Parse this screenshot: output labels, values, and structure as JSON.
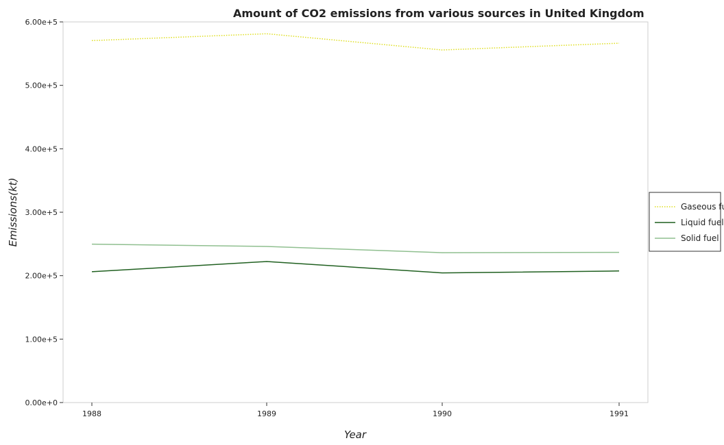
{
  "chart_data": {
    "type": "line",
    "title": "Amount of CO2 emissions from various sources in United Kingdom",
    "xlabel": "Year",
    "ylabel": "Emissions(kt)",
    "categories": [
      "1988",
      "1989",
      "1990",
      "1991"
    ],
    "ylim": [
      0,
      600000
    ],
    "y_ticks": [
      0,
      100000,
      200000,
      300000,
      400000,
      500000,
      600000
    ],
    "y_tick_labels": [
      "0.00e+0",
      "1.00e+5",
      "2.00e+5",
      "3.00e+5",
      "4.00e+5",
      "5.00e+5",
      "6.00e+5"
    ],
    "grid": false,
    "legend_position": "right",
    "series": [
      {
        "name": "Gaseous fuel",
        "color": "#dede1f",
        "dash": "dotted",
        "values": [
          570500,
          581300,
          555800,
          566400
        ]
      },
      {
        "name": "Liquid fuel",
        "color": "#1f5f1f",
        "dash": "solid",
        "values": [
          206200,
          222300,
          204400,
          207400
        ]
      },
      {
        "name": "Solid fuel",
        "color": "#8fbf8f",
        "dash": "solid",
        "values": [
          249700,
          246000,
          236200,
          236800
        ]
      }
    ]
  }
}
